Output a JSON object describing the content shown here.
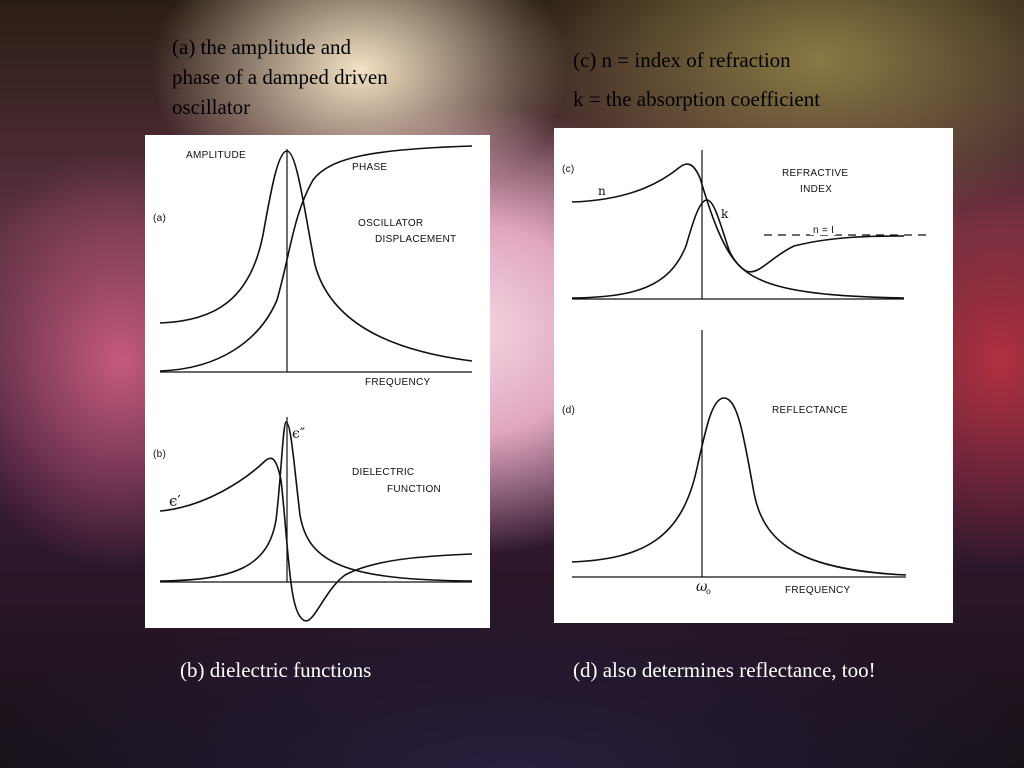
{
  "captions": {
    "a": [
      "(a) the amplitude and",
      "phase of a damped driven",
      "oscillator"
    ],
    "c": [
      "(c) n = index of refraction",
      "k = the absorption coefficient"
    ],
    "b": "(b) dielectric functions",
    "d": "(d) also determines reflectance, too!"
  },
  "figure_left": {
    "panel_a": {
      "tag": "(a)",
      "amplitude_label": "AMPLITUDE",
      "phase_label": "PHASE",
      "oscillator_label": "OSCILLATOR",
      "displacement_label": "DISPLACEMENT",
      "xaxis_label": "FREQUENCY"
    },
    "panel_b": {
      "tag": "(b)",
      "eps2_label": "ϵ″",
      "eps1_label": "ϵ′",
      "dielectric_label": "DIELECTRIC",
      "function_label": "FUNCTION"
    }
  },
  "figure_right": {
    "panel_c": {
      "tag": "(c)",
      "n_label": "n",
      "k_label": "k",
      "refractive_label": "REFRACTIVE",
      "index_label": "INDEX",
      "n1_label": "n = I"
    },
    "panel_d": {
      "tag": "(d)",
      "reflectance_label": "REFLECTANCE",
      "omega_label": "ω",
      "omega_sub": "o",
      "xaxis_label": "FREQUENCY"
    }
  }
}
